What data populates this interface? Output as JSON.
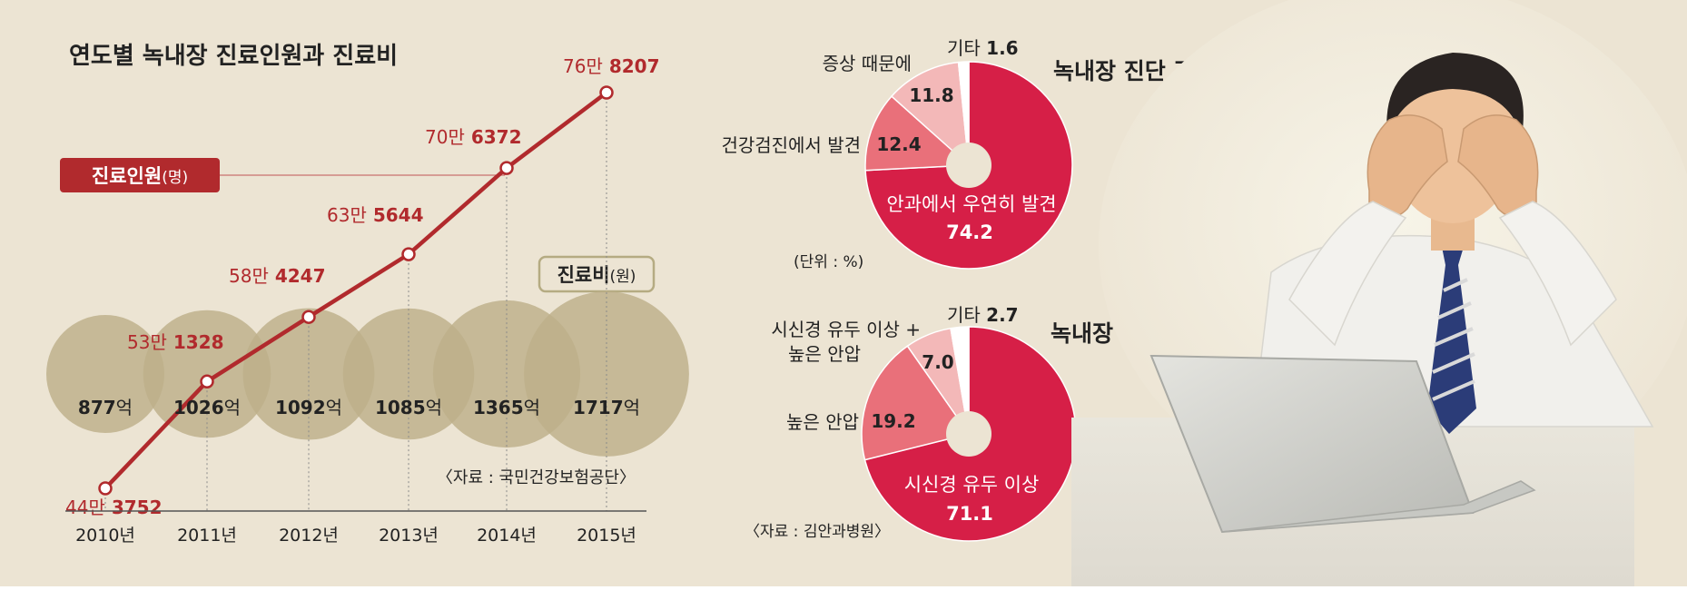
{
  "colors": {
    "background": "#ece4d3",
    "line": "#b12a2d",
    "bubble": "#bdb08a",
    "pie_main": "#d61f47",
    "pie_second": "#e9707a",
    "pie_third": "#f3b8b8",
    "pie_other": "#ffffff",
    "label_red": "#b12a2d",
    "text": "#222222"
  },
  "line_chart": {
    "title": "연도별 녹내장 진료인원과 진료비",
    "patients_label": "진료인원",
    "patients_unit": "(명)",
    "cost_label": "진료비",
    "cost_unit": "(원)",
    "source": "〈자료 : 국민건강보험공단〉"
  },
  "pie1": {
    "title": "녹내장 진단 경로",
    "unit": "(단위 : %)",
    "slices": [
      {
        "name": "안과에서 우연히 발견",
        "value": "74.2"
      },
      {
        "name": "건강검진에서 발견",
        "value": "12.4"
      },
      {
        "name": "증상 때문에",
        "value": "11.8"
      },
      {
        "name": "기타",
        "value": "1.6"
      }
    ]
  },
  "pie2": {
    "title": "녹내장 의심 이유",
    "source": "〈자료 : 김안과병원〉",
    "slices": [
      {
        "name": "시신경 유두 이상",
        "value": "71.1"
      },
      {
        "name": "높은 안압",
        "value": "19.2"
      },
      {
        "name": "시신경 유두 이상 +",
        "name2": "높은 안압",
        "value": "7.0"
      },
      {
        "name": "기타",
        "value": "2.7"
      }
    ]
  },
  "chart_data": [
    {
      "type": "line",
      "title": "연도별 녹내장 진료인원과 진료비",
      "categories": [
        "2010년",
        "2011년",
        "2012년",
        "2013년",
        "2014년",
        "2015년"
      ],
      "series": [
        {
          "name": "진료인원(명)",
          "values": [
            443752,
            531328,
            584247,
            635644,
            706372,
            768207
          ],
          "labels": [
            {
              "man": "44만",
              "rest": "3752"
            },
            {
              "man": "53만",
              "rest": "1328"
            },
            {
              "man": "58만",
              "rest": "4247"
            },
            {
              "man": "63만",
              "rest": "5644"
            },
            {
              "man": "70만",
              "rest": "6372"
            },
            {
              "man": "76만",
              "rest": "8207"
            }
          ]
        },
        {
          "name": "진료비(원)",
          "values_eok": [
            877,
            1026,
            1092,
            1085,
            1365,
            1717
          ],
          "unit": "억"
        }
      ],
      "ylim": [
        400000,
        800000
      ]
    },
    {
      "type": "pie",
      "title": "녹내장 진단 경로",
      "labels": [
        "안과에서 우연히 발견",
        "건강검진에서 발견",
        "증상 때문에",
        "기타"
      ],
      "values": [
        74.2,
        12.4,
        11.8,
        1.6
      ]
    },
    {
      "type": "pie",
      "title": "녹내장 의심 이유",
      "labels": [
        "시신경 유두 이상",
        "높은 안압",
        "시신경 유두 이상 + 높은 안압",
        "기타"
      ],
      "values": [
        71.1,
        19.2,
        7.0,
        2.7
      ]
    }
  ]
}
